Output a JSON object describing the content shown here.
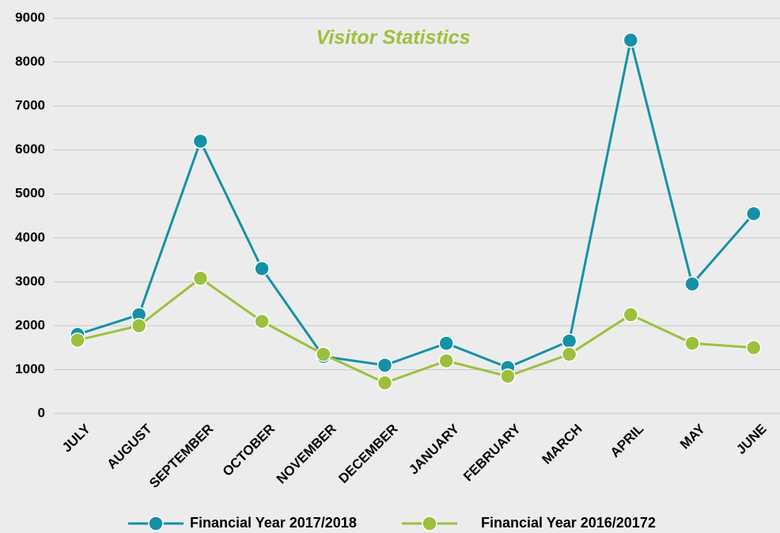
{
  "chart_data": {
    "type": "line",
    "title": "Visitor Statistics",
    "categories": [
      "JULY",
      "AUGUST",
      "SEPTEMBER",
      "OCTOBER",
      "NOVEMBER",
      "DECEMBER",
      "JANUARY",
      "FEBRUARY",
      "MARCH",
      "APRIL",
      "MAY",
      "JUNE"
    ],
    "series": [
      {
        "name": "Financial Year 2017/2018",
        "color": "#1591a6",
        "values": [
          1800,
          2250,
          6200,
          3300,
          1300,
          1100,
          1600,
          1050,
          1650,
          8500,
          2950,
          4550
        ]
      },
      {
        "name": "Financial Year 2016/20172",
        "color": "#9cc03d",
        "values": [
          1670,
          2000,
          3080,
          2100,
          1350,
          700,
          1200,
          850,
          1350,
          2250,
          1600,
          1500
        ]
      }
    ],
    "ylim": [
      0,
      9000
    ],
    "yticks": [
      0,
      1000,
      2000,
      3000,
      4000,
      5000,
      6000,
      7000,
      8000,
      9000
    ],
    "grid": true,
    "legend": "bottom"
  }
}
